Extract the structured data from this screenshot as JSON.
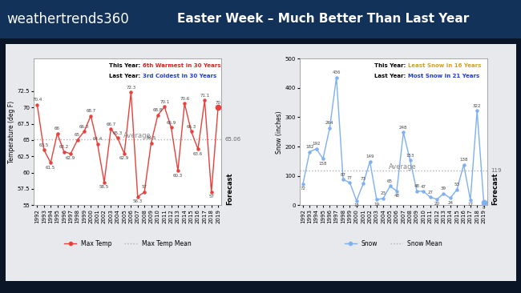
{
  "header": {
    "logo": "weathertrends360",
    "title": "Easter Week – Much Better Than Last Year"
  },
  "chart_data": [
    {
      "type": "line",
      "categories": [
        "1992",
        "1993",
        "1994",
        "1995",
        "1996",
        "1997",
        "1998",
        "1999",
        "2000",
        "2001",
        "2002",
        "2003",
        "2004",
        "2005",
        "2006",
        "2007",
        "2008",
        "2009",
        "2010",
        "2011",
        "2012",
        "2013",
        "2014",
        "2015",
        "2016",
        "2017",
        "2018",
        "2019"
      ],
      "ylabel": "Temperature (deg F)",
      "ylim": [
        55,
        77.5
      ],
      "yticks": [
        55,
        57.5,
        60,
        62.5,
        65,
        67.5,
        70,
        72.5
      ],
      "grid": false,
      "data_labels": true,
      "legend": "upper center",
      "series": [
        {
          "name": "Max Temp",
          "color": "#e8413c",
          "marker": "o",
          "line_style": "solid",
          "values": [
            70.4,
            63.5,
            61.5,
            66,
            63.2,
            62.9,
            65,
            66.3,
            68.7,
            64.4,
            58.5,
            66.7,
            65.3,
            62.9,
            72.3,
            56.3,
            57,
            64.5,
            68.8,
            70.1,
            66.9,
            60.3,
            70.6,
            66.3,
            63.6,
            71.1,
            57,
            70
          ]
        },
        {
          "name": "Max Temp Mean",
          "color": "#b0b0b0",
          "line_style": "dotted",
          "value": 65.06
        }
      ],
      "average_label": "Average",
      "forecast_label": "Forecast",
      "annotations": [
        [
          {
            "text": "This Year: ",
            "color": "#000000"
          },
          {
            "text": "6th Warmest in 30 Years",
            "color": "#e02020"
          }
        ],
        [
          {
            "text": "Last Year: ",
            "color": "#000000"
          },
          {
            "text": "3rd Coldest in 30 Years",
            "color": "#1f3fd0"
          }
        ]
      ]
    },
    {
      "type": "line",
      "categories": [
        "1992",
        "1993",
        "1994",
        "1995",
        "1996",
        "1997",
        "1998",
        "1999",
        "2000",
        "2001",
        "2002",
        "2003",
        "2004",
        "2005",
        "2006",
        "2007",
        "2008",
        "2009",
        "2010",
        "2011",
        "2012",
        "2013",
        "2014",
        "2015",
        "2016",
        "2017",
        "2018",
        "2019"
      ],
      "ylabel": "Snow (inches)",
      "ylim": [
        0,
        500
      ],
      "yticks": [
        0,
        100,
        200,
        300,
        400,
        500
      ],
      "grid": false,
      "data_labels": true,
      "legend": "upper center",
      "series": [
        {
          "name": "Snow",
          "color": "#7fb0f0",
          "marker": "o",
          "line_style": "solid",
          "values": [
            72,
            182,
            192,
            158,
            264,
            436,
            87,
            77,
            15,
            73,
            149,
            19,
            23,
            65,
            48,
            248,
            153,
            48,
            47,
            27,
            20,
            39,
            24,
            53,
            138,
            17,
            322,
            8
          ]
        },
        {
          "name": "Snow Mean",
          "color": "#b0b0b0",
          "line_style": "dotted",
          "value": 119
        }
      ],
      "average_label": "Average",
      "forecast_label": "Forecast",
      "annotations": [
        [
          {
            "text": "This Year: ",
            "color": "#000000"
          },
          {
            "text": "Least Snow in 16 Years",
            "color": "#d4a017"
          }
        ],
        [
          {
            "text": "Last Year: ",
            "color": "#000000"
          },
          {
            "text": "Most Snow in 21 Years",
            "color": "#1f3fd0"
          }
        ]
      ]
    }
  ]
}
